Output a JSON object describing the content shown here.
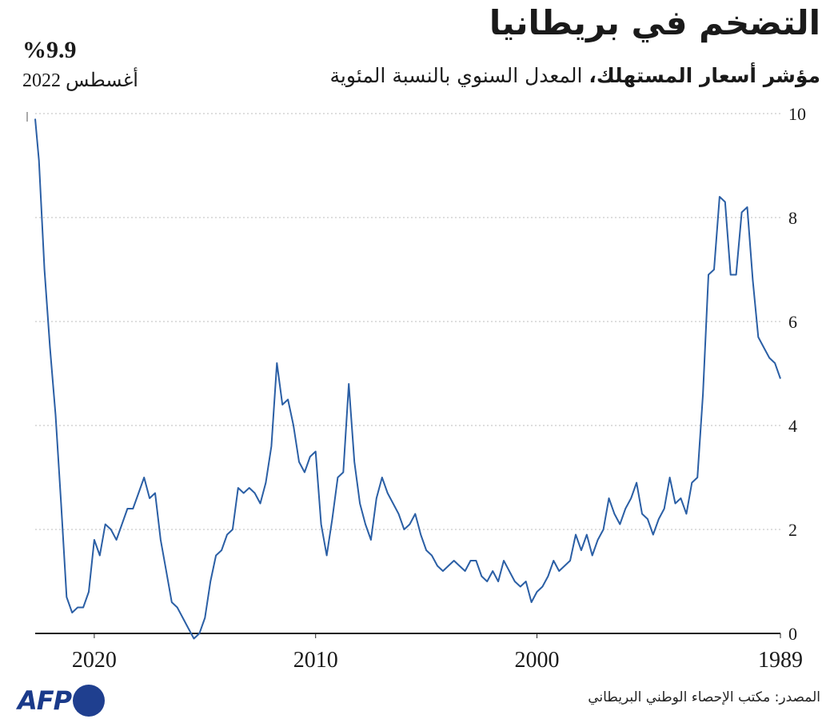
{
  "header": {
    "title": "التضخم في بريطانيا",
    "subtitle_bold": "مؤشر أسعار المستهلك،",
    "subtitle_rest": " المعدل السنوي بالنسبة المئوية"
  },
  "callout": {
    "value": "%9.9",
    "date": "أغسطس 2022"
  },
  "footer": {
    "source": "المصدر: مكتب الإحصاء الوطني البريطاني",
    "logo_text": "AFP"
  },
  "colors": {
    "line": "#2b5fa5",
    "grid": "#bdbdbd",
    "logo": "#1f3f8f"
  },
  "chart_data": {
    "type": "line",
    "title": "التضخم في بريطانيا",
    "x_axis": {
      "direction": "right-to-left",
      "range": [
        1989,
        2022.67
      ],
      "tick_labels": [
        "1989",
        "2000",
        "2010",
        "2020"
      ]
    },
    "y_axis": {
      "range": [
        0,
        10
      ],
      "ticks": [
        0,
        2,
        4,
        6,
        8,
        10
      ],
      "position": "right"
    },
    "grid": "horizontal dotted",
    "series": [
      {
        "x": [
          1989.0,
          1989.25,
          1989.5,
          1989.75,
          1990.0,
          1990.25,
          1990.5,
          1990.75,
          1991.0,
          1991.25,
          1991.5,
          1991.75,
          1992.0,
          1992.25,
          1992.5,
          1992.75,
          1993.0,
          1993.25,
          1993.5,
          1993.75,
          1994.0,
          1994.25,
          1994.5,
          1994.75,
          1995.0,
          1995.25,
          1995.5,
          1995.75,
          1996.0,
          1996.25,
          1996.5,
          1996.75,
          1997.0,
          1997.25,
          1997.5,
          1997.75,
          1998.0,
          1998.25,
          1998.5,
          1998.75,
          1999.0,
          1999.25,
          1999.5,
          1999.75,
          2000.0,
          2000.25,
          2000.5,
          2000.75,
          2001.0,
          2001.25,
          2001.5,
          2001.75,
          2002.0,
          2002.25,
          2002.5,
          2002.75,
          2003.0,
          2003.25,
          2003.5,
          2003.75,
          2004.0,
          2004.25,
          2004.5,
          2004.75,
          2005.0,
          2005.25,
          2005.5,
          2005.75,
          2006.0,
          2006.25,
          2006.5,
          2006.75,
          2007.0,
          2007.25,
          2007.5,
          2007.75,
          2008.0,
          2008.25,
          2008.5,
          2008.75,
          2009.0,
          2009.25,
          2009.5,
          2009.75,
          2010.0,
          2010.25,
          2010.5,
          2010.75,
          2011.0,
          2011.25,
          2011.5,
          2011.75,
          2012.0,
          2012.25,
          2012.5,
          2012.75,
          2013.0,
          2013.25,
          2013.5,
          2013.75,
          2014.0,
          2014.25,
          2014.5,
          2014.75,
          2015.0,
          2015.25,
          2015.5,
          2015.75,
          2016.0,
          2016.25,
          2016.5,
          2016.75,
          2017.0,
          2017.25,
          2017.5,
          2017.75,
          2018.0,
          2018.25,
          2018.5,
          2018.75,
          2019.0,
          2019.25,
          2019.5,
          2019.75,
          2020.0,
          2020.25,
          2020.5,
          2020.75,
          2021.0,
          2021.25,
          2021.5,
          2021.75,
          2022.0,
          2022.25,
          2022.5,
          2022.67
        ],
        "values": [
          4.9,
          5.2,
          5.3,
          5.5,
          5.7,
          6.8,
          8.2,
          8.1,
          6.9,
          6.9,
          8.3,
          8.4,
          7.0,
          6.9,
          4.6,
          3.0,
          2.9,
          2.3,
          2.6,
          2.5,
          3.0,
          2.4,
          2.2,
          1.9,
          2.2,
          2.3,
          2.9,
          2.6,
          2.4,
          2.1,
          2.3,
          2.6,
          2.0,
          1.8,
          1.5,
          1.9,
          1.6,
          1.9,
          1.4,
          1.3,
          1.2,
          1.4,
          1.1,
          0.9,
          0.8,
          0.6,
          1.0,
          0.9,
          1.0,
          1.2,
          1.4,
          1.0,
          1.2,
          1.0,
          1.1,
          1.4,
          1.4,
          1.2,
          1.3,
          1.4,
          1.3,
          1.2,
          1.3,
          1.5,
          1.6,
          1.9,
          2.3,
          2.1,
          2.0,
          2.3,
          2.5,
          2.7,
          3.0,
          2.6,
          1.8,
          2.1,
          2.5,
          3.3,
          4.8,
          3.1,
          3.0,
          2.2,
          1.5,
          2.1,
          3.5,
          3.4,
          3.1,
          3.3,
          4.0,
          4.5,
          4.4,
          5.2,
          3.6,
          2.9,
          2.5,
          2.7,
          2.8,
          2.7,
          2.8,
          2.0,
          1.9,
          1.6,
          1.5,
          1.0,
          0.3,
          0.0,
          -0.1,
          0.1,
          0.3,
          0.5,
          0.6,
          1.2,
          1.8,
          2.7,
          2.6,
          3.0,
          2.7,
          2.4,
          2.4,
          2.1,
          1.8,
          2.0,
          2.1,
          1.5,
          1.8,
          0.8,
          0.5,
          0.5,
          0.4,
          0.7,
          2.5,
          4.2,
          5.5,
          7.0,
          9.1,
          9.9
        ]
      }
    ]
  }
}
